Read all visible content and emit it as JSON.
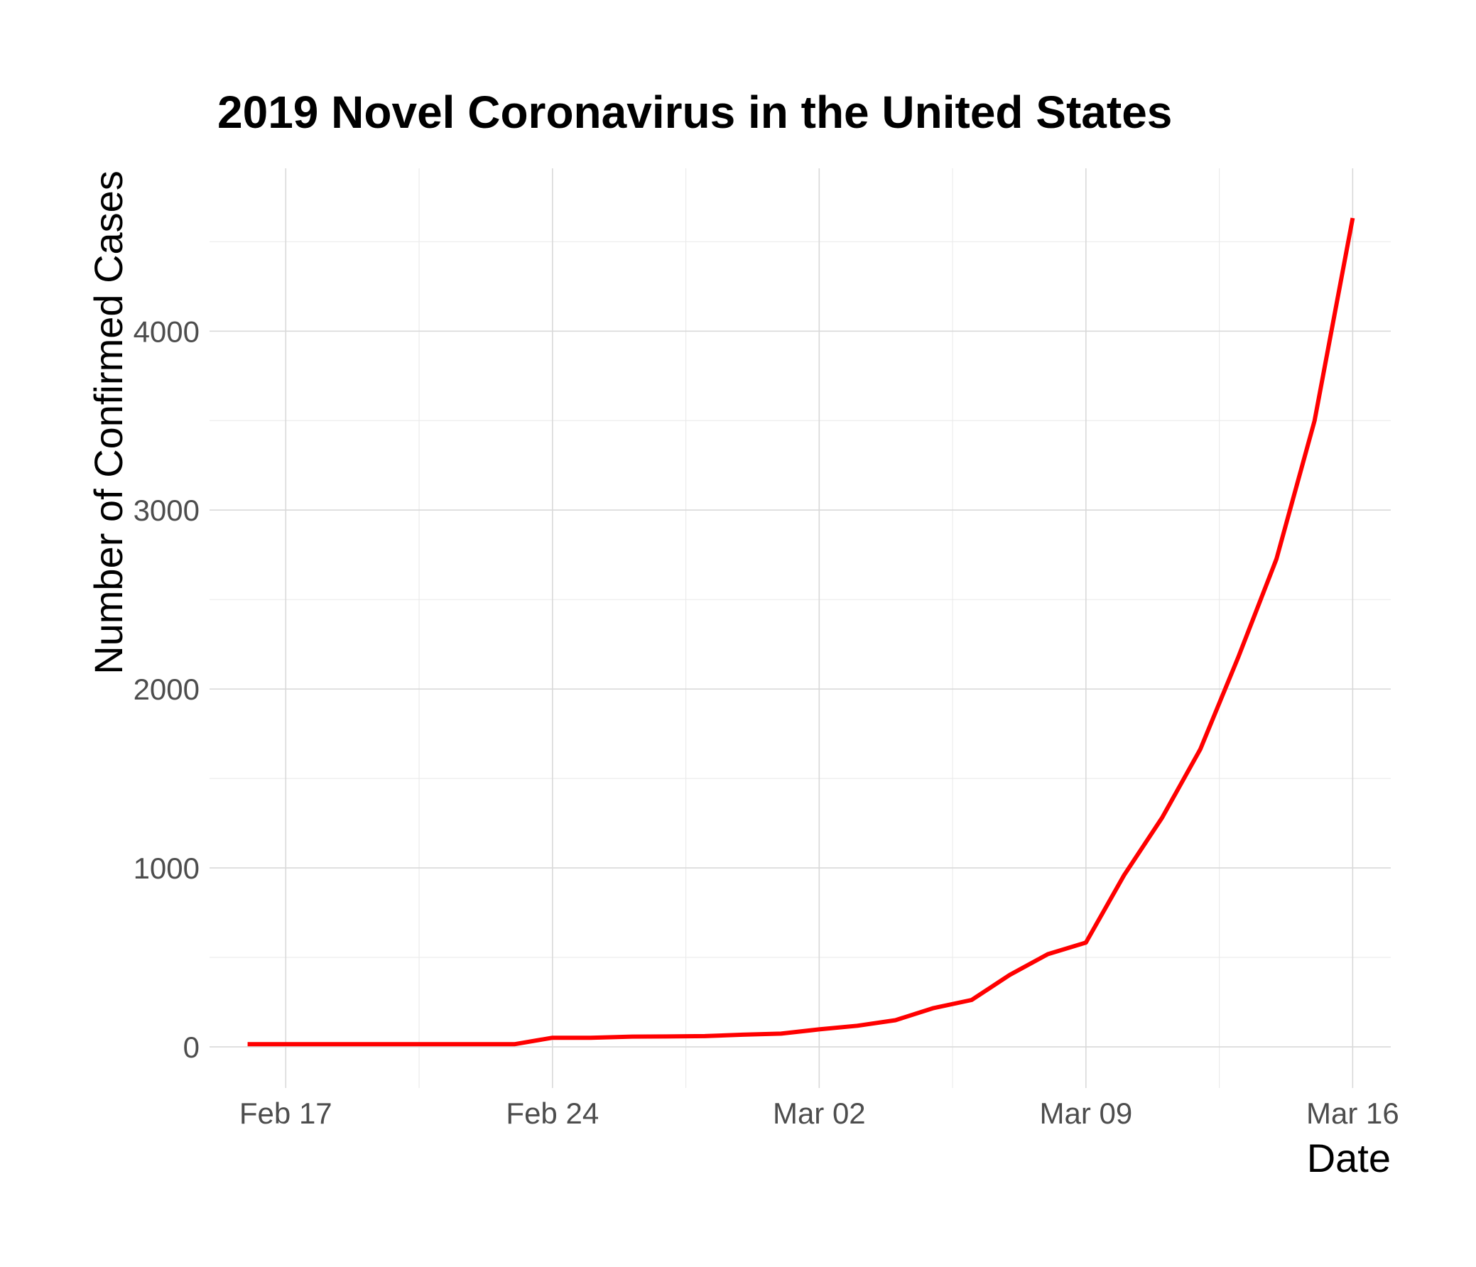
{
  "chart_data": {
    "type": "line",
    "title": "2019 Novel Coronavirus in the United States",
    "xlabel": "Date",
    "ylabel": "Number of Confirmed Cases",
    "x_ticks": [
      {
        "label": "Feb 17",
        "date": "2020-02-17"
      },
      {
        "label": "Feb 24",
        "date": "2020-02-24"
      },
      {
        "label": "Mar 02",
        "date": "2020-03-02"
      },
      {
        "label": "Mar 09",
        "date": "2020-03-09"
      },
      {
        "label": "Mar 16",
        "date": "2020-03-16"
      }
    ],
    "y_ticks": [
      0,
      1000,
      2000,
      3000,
      4000
    ],
    "xlim": [
      "2020-02-15",
      "2020-03-17"
    ],
    "ylim": [
      -230,
      4910
    ],
    "grid": true,
    "line_color": "#ff0000",
    "series": [
      {
        "x": [
          "2020-02-16",
          "2020-02-17",
          "2020-02-18",
          "2020-02-19",
          "2020-02-20",
          "2020-02-21",
          "2020-02-22",
          "2020-02-23",
          "2020-02-24",
          "2020-02-25",
          "2020-02-26",
          "2020-02-27",
          "2020-02-28",
          "2020-02-29",
          "2020-03-01",
          "2020-03-02",
          "2020-03-03",
          "2020-03-04",
          "2020-03-05",
          "2020-03-06",
          "2020-03-07",
          "2020-03-08",
          "2020-03-09",
          "2020-03-10",
          "2020-03-11",
          "2020-03-12",
          "2020-03-13",
          "2020-03-14",
          "2020-03-15",
          "2020-03-16"
        ],
        "values": [
          15,
          15,
          15,
          15,
          15,
          15,
          15,
          15,
          51,
          51,
          57,
          58,
          60,
          68,
          74,
          98,
          118,
          149,
          217,
          262,
          402,
          518,
          583,
          959,
          1281,
          1663,
          2179,
          2727,
          3499,
          4632
        ]
      }
    ]
  }
}
